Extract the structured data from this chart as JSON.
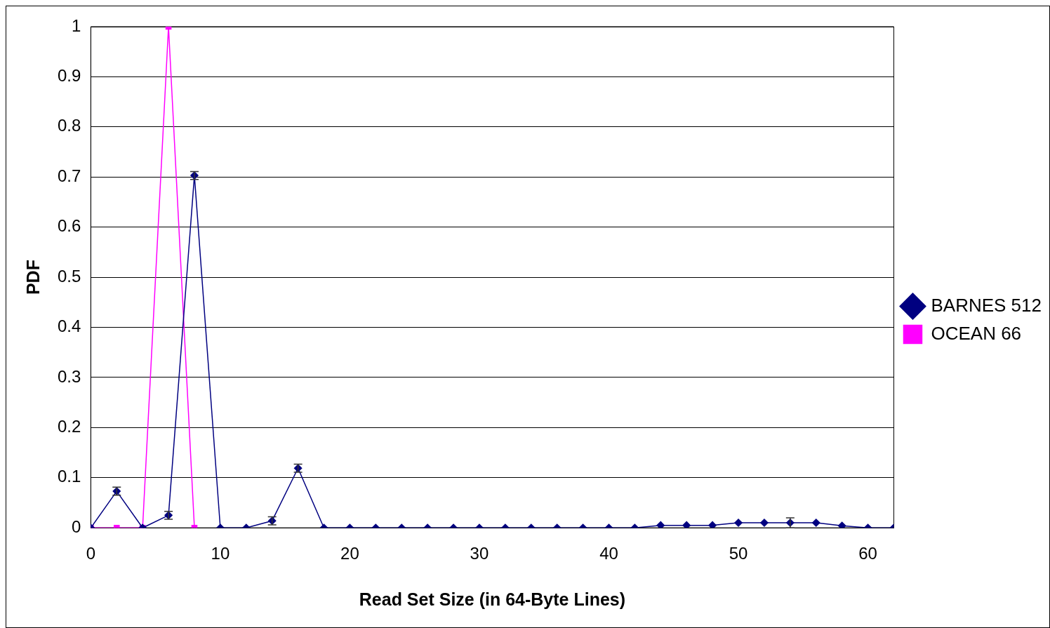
{
  "chart_data": {
    "type": "line",
    "xlabel": "Read Set Size (in 64-Byte Lines)",
    "ylabel": "PDF",
    "xlim": [
      0,
      62
    ],
    "xticks": [
      0,
      10,
      20,
      30,
      40,
      50,
      60
    ],
    "ylim": [
      0,
      1
    ],
    "yticks": [
      0,
      0.1,
      0.2,
      0.3,
      0.4,
      0.5,
      0.6,
      0.7,
      0.8,
      0.9,
      1
    ],
    "grid": "y",
    "legend": "right",
    "line_style": "solid",
    "series": [
      {
        "name": "BARNES 512",
        "color": "#000080",
        "marker": "diamond",
        "x": [
          0,
          2,
          4,
          6,
          8,
          10,
          12,
          14,
          16,
          18,
          20,
          22,
          24,
          26,
          28,
          30,
          32,
          34,
          36,
          38,
          40,
          42,
          44,
          46,
          48,
          50,
          52,
          54,
          56,
          58,
          60,
          62
        ],
        "values": [
          0,
          0.073,
          0,
          0.025,
          0.703,
          0,
          0,
          0.014,
          0.119,
          0,
          0,
          0,
          0,
          0,
          0,
          0,
          0,
          0,
          0,
          0,
          0,
          0,
          0.005,
          0.005,
          0.005,
          0.01,
          0.01,
          0.01,
          0.01,
          0.004,
          0,
          0
        ],
        "errors": [
          null,
          0.008,
          null,
          0.008,
          0.008,
          null,
          null,
          0.008,
          0.008,
          null,
          null,
          null,
          null,
          null,
          null,
          null,
          null,
          null,
          null,
          null,
          null,
          null,
          null,
          null,
          null,
          null,
          null,
          0.01,
          null,
          null,
          null,
          null
        ]
      },
      {
        "name": "OCEAN 66",
        "color": "#ff00ff",
        "marker": "square",
        "x": [
          0,
          2,
          4,
          6,
          8
        ],
        "values": [
          0,
          0,
          0,
          1,
          0
        ]
      }
    ]
  }
}
